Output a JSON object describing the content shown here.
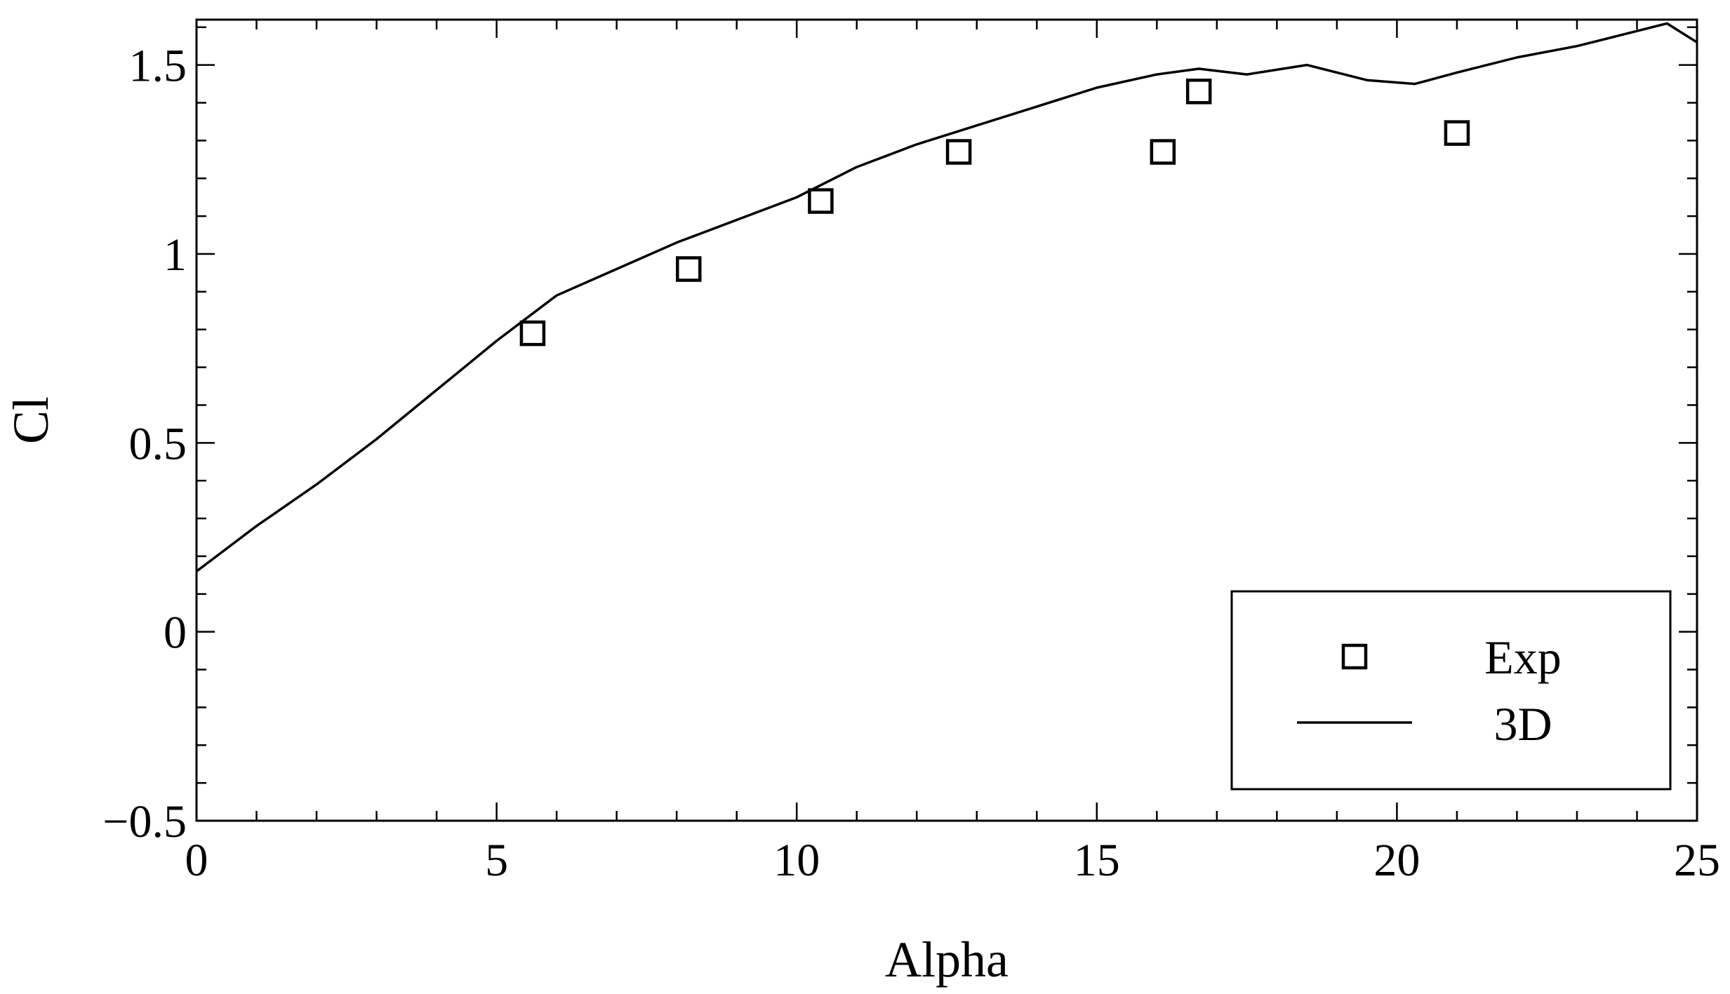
{
  "chart_data": {
    "type": "line",
    "title": "",
    "xlabel": "Alpha",
    "ylabel": "Cl",
    "xlim": [
      0,
      25
    ],
    "ylim": [
      -0.5,
      1.62
    ],
    "x_ticks": [
      0,
      5,
      10,
      15,
      20,
      25
    ],
    "x_tick_labels": [
      "0",
      "5",
      "10",
      "15",
      "20",
      "25"
    ],
    "y_ticks": [
      -0.5,
      0,
      0.5,
      1,
      1.5
    ],
    "y_tick_labels": [
      "−0.5",
      "0",
      "0.5",
      "1",
      "1.5"
    ],
    "grid": false,
    "legend_position": "bottom-right",
    "series": [
      {
        "name": "Exp",
        "kind": "scatter",
        "marker": "open-square",
        "points": [
          {
            "x": 5.6,
            "y": 0.79
          },
          {
            "x": 8.2,
            "y": 0.96
          },
          {
            "x": 10.4,
            "y": 1.14
          },
          {
            "x": 12.7,
            "y": 1.27
          },
          {
            "x": 16.1,
            "y": 1.27
          },
          {
            "x": 16.7,
            "y": 1.43
          },
          {
            "x": 21.0,
            "y": 1.32
          }
        ]
      },
      {
        "name": "3D",
        "kind": "line",
        "points": [
          {
            "x": 0,
            "y": 0.16
          },
          {
            "x": 1,
            "y": 0.28
          },
          {
            "x": 2,
            "y": 0.39
          },
          {
            "x": 3,
            "y": 0.51
          },
          {
            "x": 4,
            "y": 0.64
          },
          {
            "x": 5,
            "y": 0.77
          },
          {
            "x": 6,
            "y": 0.89
          },
          {
            "x": 7,
            "y": 0.96
          },
          {
            "x": 8,
            "y": 1.03
          },
          {
            "x": 9,
            "y": 1.09
          },
          {
            "x": 10,
            "y": 1.15
          },
          {
            "x": 11,
            "y": 1.23
          },
          {
            "x": 12,
            "y": 1.29
          },
          {
            "x": 13,
            "y": 1.34
          },
          {
            "x": 14,
            "y": 1.39
          },
          {
            "x": 15,
            "y": 1.44
          },
          {
            "x": 16,
            "y": 1.475
          },
          {
            "x": 16.7,
            "y": 1.49
          },
          {
            "x": 17.5,
            "y": 1.475
          },
          {
            "x": 18.5,
            "y": 1.5
          },
          {
            "x": 19.5,
            "y": 1.46
          },
          {
            "x": 20.3,
            "y": 1.45
          },
          {
            "x": 21,
            "y": 1.48
          },
          {
            "x": 22,
            "y": 1.52
          },
          {
            "x": 23,
            "y": 1.55
          },
          {
            "x": 24,
            "y": 1.59
          },
          {
            "x": 24.5,
            "y": 1.61
          },
          {
            "x": 25,
            "y": 1.56
          }
        ]
      }
    ]
  },
  "colors": {
    "axis": "#000000",
    "line": "#000000",
    "marker": "#000000"
  }
}
